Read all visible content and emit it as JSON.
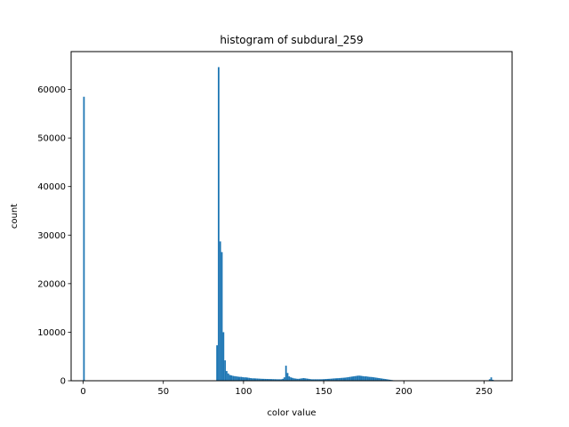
{
  "chart_data": {
    "type": "bar",
    "title": "histogram of subdural_259",
    "xlabel": "color value",
    "ylabel": "count",
    "xlim": [
      -7.5,
      267.5
    ],
    "ylim": [
      0,
      67800
    ],
    "x_ticks": [
      0,
      50,
      100,
      150,
      200,
      250
    ],
    "y_ticks": [
      0,
      10000,
      20000,
      30000,
      40000,
      50000,
      60000
    ],
    "grid": false,
    "bar_color": "#1f77b4",
    "bin_width": 1,
    "bins": [
      [
        0,
        58500
      ],
      [
        83,
        7300
      ],
      [
        84,
        64600
      ],
      [
        85,
        28700
      ],
      [
        86,
        26500
      ],
      [
        87,
        10000
      ],
      [
        88,
        4200
      ],
      [
        89,
        2000
      ],
      [
        90,
        1500
      ],
      [
        91,
        1200
      ],
      [
        92,
        1100
      ],
      [
        93,
        1000
      ],
      [
        94,
        950
      ],
      [
        95,
        900
      ],
      [
        96,
        850
      ],
      [
        97,
        800
      ],
      [
        98,
        800
      ],
      [
        99,
        750
      ],
      [
        100,
        700
      ],
      [
        101,
        700
      ],
      [
        102,
        650
      ],
      [
        103,
        600
      ],
      [
        104,
        550
      ],
      [
        105,
        500
      ],
      [
        106,
        500
      ],
      [
        107,
        480
      ],
      [
        108,
        460
      ],
      [
        109,
        440
      ],
      [
        110,
        420
      ],
      [
        111,
        400
      ],
      [
        112,
        390
      ],
      [
        113,
        380
      ],
      [
        114,
        370
      ],
      [
        115,
        360
      ],
      [
        116,
        350
      ],
      [
        117,
        340
      ],
      [
        118,
        330
      ],
      [
        119,
        320
      ],
      [
        120,
        310
      ],
      [
        121,
        300
      ],
      [
        122,
        300
      ],
      [
        123,
        300
      ],
      [
        124,
        400
      ],
      [
        125,
        700
      ],
      [
        126,
        3100
      ],
      [
        127,
        1600
      ],
      [
        128,
        900
      ],
      [
        129,
        700
      ],
      [
        130,
        600
      ],
      [
        131,
        500
      ],
      [
        132,
        450
      ],
      [
        133,
        400
      ],
      [
        134,
        400
      ],
      [
        135,
        450
      ],
      [
        136,
        500
      ],
      [
        137,
        550
      ],
      [
        138,
        500
      ],
      [
        139,
        450
      ],
      [
        140,
        400
      ],
      [
        141,
        350
      ],
      [
        142,
        300
      ],
      [
        143,
        300
      ],
      [
        144,
        300
      ],
      [
        145,
        300
      ],
      [
        146,
        300
      ],
      [
        147,
        300
      ],
      [
        148,
        300
      ],
      [
        149,
        320
      ],
      [
        150,
        340
      ],
      [
        151,
        360
      ],
      [
        152,
        380
      ],
      [
        153,
        400
      ],
      [
        154,
        420
      ],
      [
        155,
        450
      ],
      [
        156,
        480
      ],
      [
        157,
        500
      ],
      [
        158,
        520
      ],
      [
        159,
        540
      ],
      [
        160,
        570
      ],
      [
        161,
        600
      ],
      [
        162,
        620
      ],
      [
        163,
        650
      ],
      [
        164,
        700
      ],
      [
        165,
        750
      ],
      [
        166,
        800
      ],
      [
        167,
        850
      ],
      [
        168,
        900
      ],
      [
        169,
        950
      ],
      [
        170,
        1000
      ],
      [
        171,
        1050
      ],
      [
        172,
        1050
      ],
      [
        173,
        1000
      ],
      [
        174,
        950
      ],
      [
        175,
        900
      ],
      [
        176,
        900
      ],
      [
        177,
        850
      ],
      [
        178,
        800
      ],
      [
        179,
        780
      ],
      [
        180,
        750
      ],
      [
        181,
        700
      ],
      [
        182,
        650
      ],
      [
        183,
        600
      ],
      [
        184,
        550
      ],
      [
        185,
        500
      ],
      [
        186,
        450
      ],
      [
        187,
        400
      ],
      [
        188,
        350
      ],
      [
        189,
        300
      ],
      [
        190,
        250
      ],
      [
        191,
        200
      ],
      [
        192,
        150
      ],
      [
        193,
        100
      ],
      [
        194,
        80
      ],
      [
        195,
        60
      ],
      [
        196,
        50
      ],
      [
        197,
        40
      ],
      [
        198,
        30
      ],
      [
        199,
        25
      ],
      [
        200,
        20
      ],
      [
        253,
        300
      ],
      [
        254,
        700
      ],
      [
        255,
        200
      ]
    ]
  }
}
